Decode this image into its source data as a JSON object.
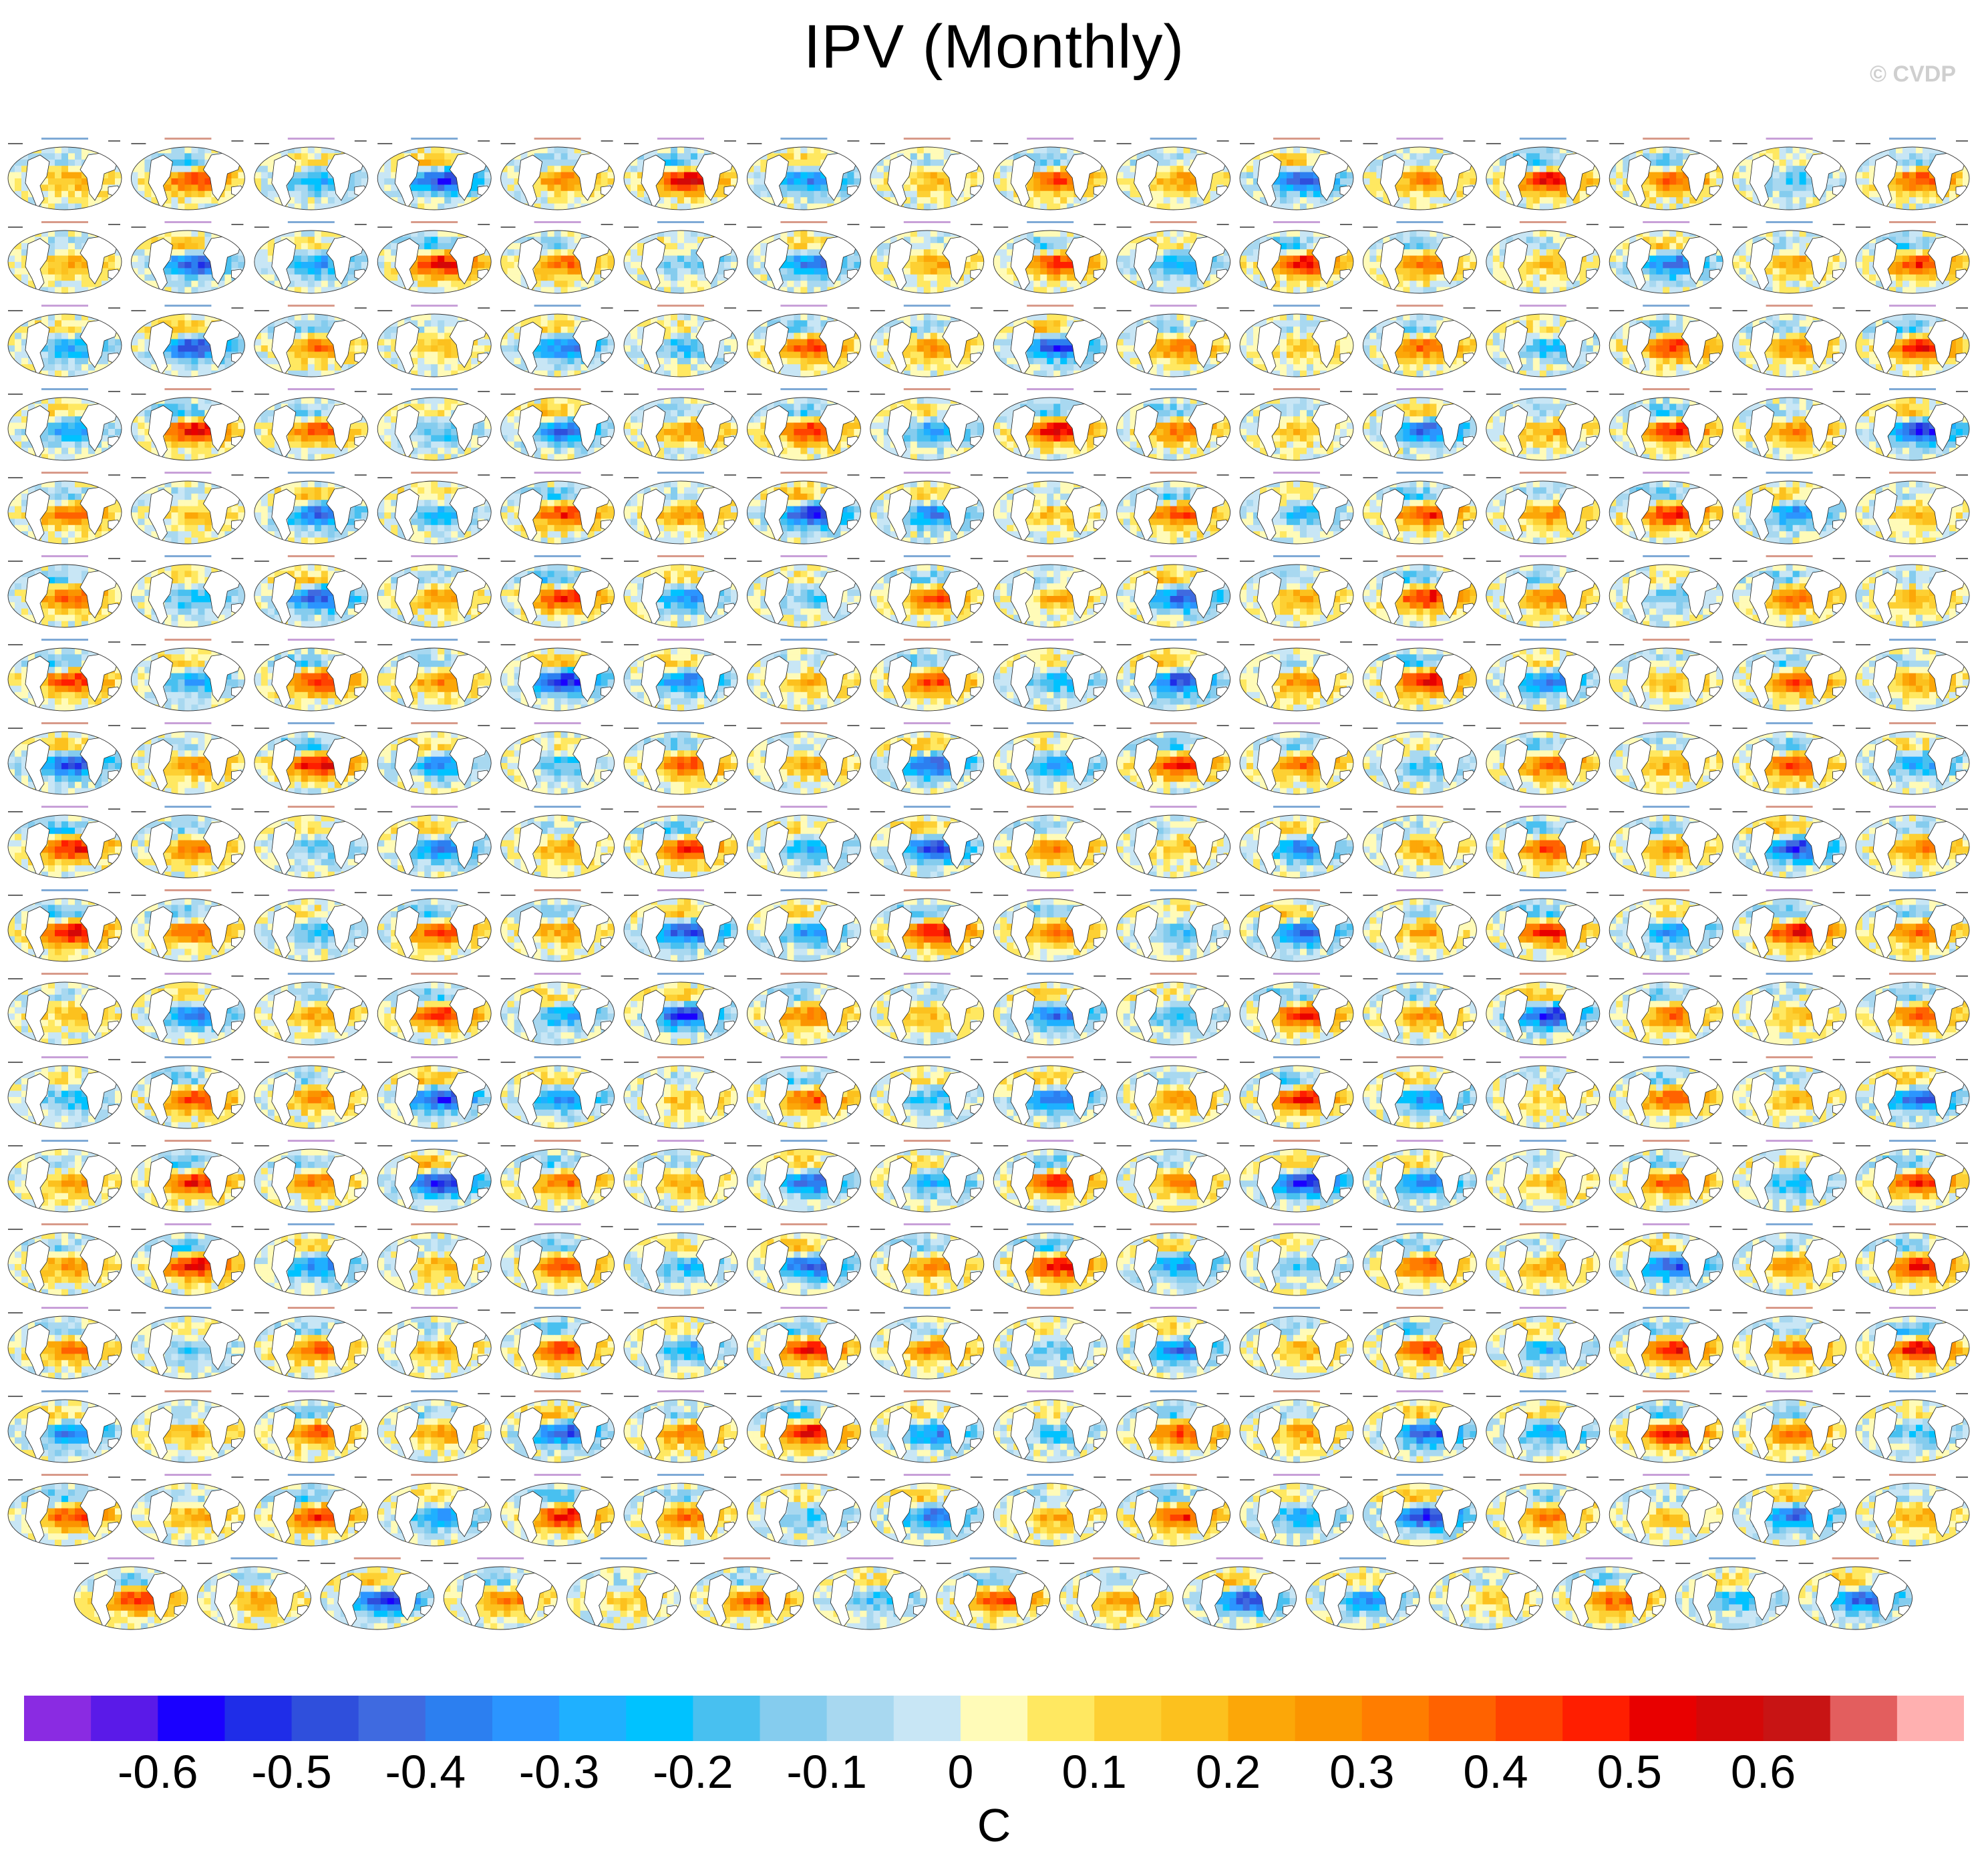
{
  "title": "IPV (Monthly)",
  "watermark": "© CVDP",
  "chart_data": {
    "type": "heatmap",
    "title": "IPV (Monthly)",
    "description_kind": "small-multiple global SST regression maps",
    "rows_full": 17,
    "cols_full": 16,
    "last_row_panels": 15,
    "colorbar": {
      "unit": "C",
      "levels": [
        -0.65,
        -0.6,
        -0.55,
        -0.5,
        -0.45,
        -0.4,
        -0.35,
        -0.3,
        -0.25,
        -0.2,
        -0.15,
        -0.1,
        -0.05,
        0,
        0.05,
        0.1,
        0.15,
        0.2,
        0.25,
        0.3,
        0.35,
        0.4,
        0.45,
        0.5,
        0.55,
        0.6,
        0.65
      ],
      "colors": [
        "#8a2be2",
        "#5a1ae8",
        "#1a00ff",
        "#1f2de8",
        "#2f4fdc",
        "#3f6ae0",
        "#2c7ff0",
        "#2b95ff",
        "#1fb0ff",
        "#00c2ff",
        "#48c0f0",
        "#85ccee",
        "#a8d8f0",
        "#c8e6f5",
        "#fffbb8",
        "#ffe861",
        "#fdd033",
        "#fcc11e",
        "#fca708",
        "#fb9400",
        "#ff7d00",
        "#ff6200",
        "#ff4200",
        "#ff1e00",
        "#e80000",
        "#d40808",
        "#c81414",
        "#e35e5e",
        "#ffb0b0"
      ],
      "tick_labels": [
        "-0.6",
        "-0.5",
        "-0.4",
        "-0.3",
        "-0.2",
        "-0.1",
        "0",
        "0.1",
        "0.2",
        "0.3",
        "0.4",
        "0.5",
        "0.6"
      ],
      "tick_values": [
        -0.6,
        -0.5,
        -0.4,
        -0.3,
        -0.2,
        -0.1,
        0,
        0.1,
        0.2,
        0.3,
        0.4,
        0.5,
        0.6
      ]
    }
  }
}
